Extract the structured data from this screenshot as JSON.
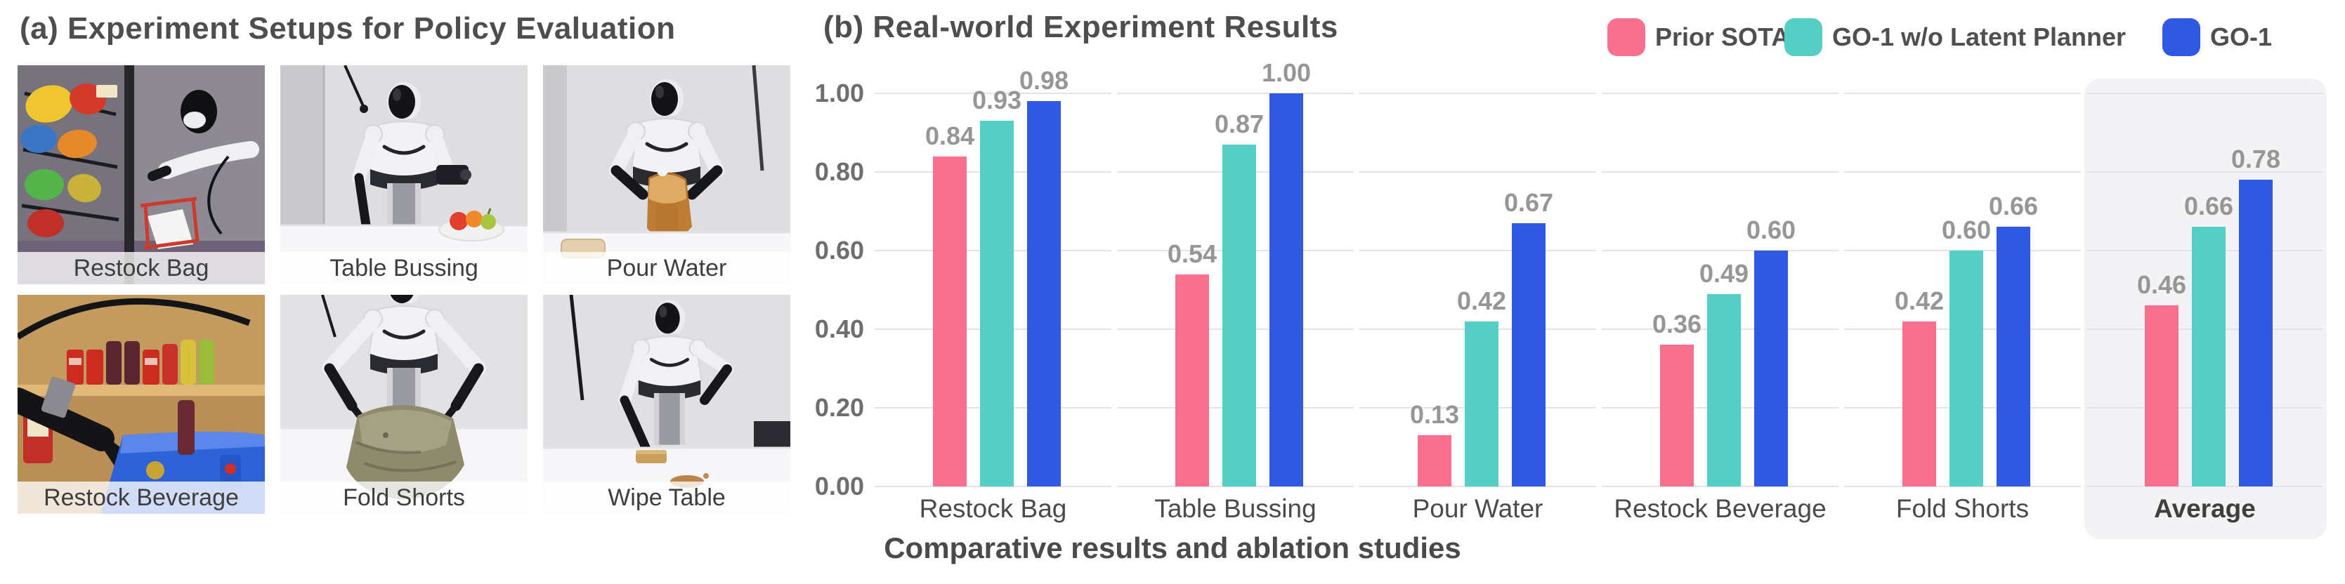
{
  "panel_a": {
    "title": "(a) Experiment Setups for Policy Evaluation",
    "photos": [
      {
        "label": "Restock Bag"
      },
      {
        "label": "Table Bussing"
      },
      {
        "label": "Pour Water"
      },
      {
        "label": "Restock Beverage"
      },
      {
        "label": "Fold Shorts"
      },
      {
        "label": "Wipe Table"
      }
    ]
  },
  "panel_b": {
    "title": "(b) Real-world Experiment Results",
    "caption": "Comparative results and ablation studies"
  },
  "chart_data": {
    "type": "bar",
    "categories": [
      "Restock Bag",
      "Table Bussing",
      "Pour Water",
      "Restock Beverage",
      "Fold Shorts",
      "Average"
    ],
    "series": [
      {
        "name": "Prior SOTA",
        "color": "#F9708E",
        "values": [
          0.84,
          0.54,
          0.13,
          0.36,
          0.42,
          0.46
        ]
      },
      {
        "name": "GO-1 w/o Latent Planner",
        "color": "#55CFC3",
        "values": [
          0.93,
          0.87,
          0.42,
          0.49,
          0.6,
          0.66
        ]
      },
      {
        "name": "GO-1",
        "color": "#3158E3",
        "values": [
          0.98,
          1.0,
          0.67,
          0.6,
          0.66,
          0.78
        ]
      }
    ],
    "title": "(b) Real-world Experiment Results",
    "xlabel": "",
    "ylabel": "",
    "ylim": [
      0,
      1.0
    ],
    "yticks": [
      0,
      0.2,
      0.4,
      0.6,
      0.8,
      1.0
    ],
    "grid": true,
    "value_labels": true,
    "legend_position": "top-right",
    "highlight_category": "Average"
  }
}
